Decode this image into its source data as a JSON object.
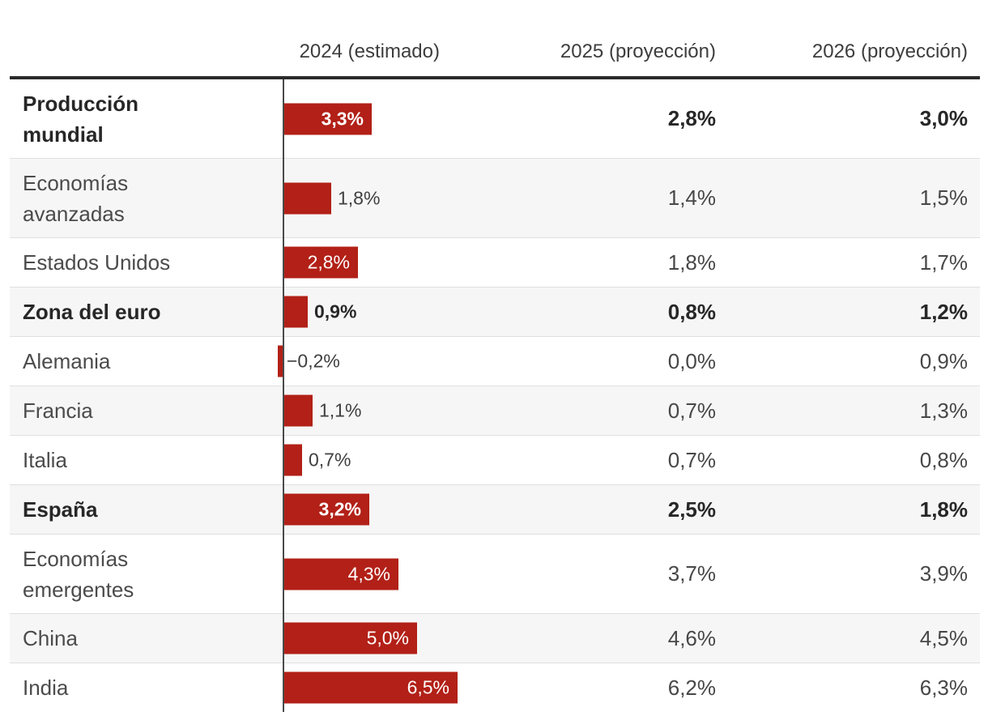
{
  "header": {
    "col_2024": "2024 (estimado)",
    "col_2025": "2025 (proyección)",
    "col_2026": "2026 (proyección)"
  },
  "rows": [
    {
      "label_lines": [
        "Producción",
        "mundial"
      ],
      "bold": true,
      "value_2024": 3.3,
      "bar_label": "3,3%",
      "label_inside": true,
      "value_2025": "2,8%",
      "value_2026": "3,0%"
    },
    {
      "label_lines": [
        "Economías",
        "avanzadas"
      ],
      "bold": false,
      "value_2024": 1.8,
      "bar_label": "1,8%",
      "label_inside": false,
      "value_2025": "1,4%",
      "value_2026": "1,5%"
    },
    {
      "label_lines": [
        "Estados Unidos"
      ],
      "bold": false,
      "value_2024": 2.8,
      "bar_label": "2,8%",
      "label_inside": true,
      "value_2025": "1,8%",
      "value_2026": "1,7%"
    },
    {
      "label_lines": [
        "Zona del euro"
      ],
      "bold": true,
      "value_2024": 0.9,
      "bar_label": "0,9%",
      "label_inside": false,
      "value_2025": "0,8%",
      "value_2026": "1,2%"
    },
    {
      "label_lines": [
        "Alemania"
      ],
      "bold": false,
      "value_2024": -0.2,
      "bar_label": "−0,2%",
      "label_inside": false,
      "value_2025": "0,0%",
      "value_2026": "0,9%"
    },
    {
      "label_lines": [
        "Francia"
      ],
      "bold": false,
      "value_2024": 1.1,
      "bar_label": "1,1%",
      "label_inside": false,
      "value_2025": "0,7%",
      "value_2026": "1,3%"
    },
    {
      "label_lines": [
        "Italia"
      ],
      "bold": false,
      "value_2024": 0.7,
      "bar_label": "0,7%",
      "label_inside": false,
      "value_2025": "0,7%",
      "value_2026": "0,8%"
    },
    {
      "label_lines": [
        "España"
      ],
      "bold": true,
      "value_2024": 3.2,
      "bar_label": "3,2%",
      "label_inside": true,
      "value_2025": "2,5%",
      "value_2026": "1,8%"
    },
    {
      "label_lines": [
        "Economías",
        "emergentes"
      ],
      "bold": false,
      "value_2024": 4.3,
      "bar_label": "4,3%",
      "label_inside": true,
      "value_2025": "3,7%",
      "value_2026": "3,9%"
    },
    {
      "label_lines": [
        "China"
      ],
      "bold": false,
      "value_2024": 5.0,
      "bar_label": "5,0%",
      "label_inside": true,
      "value_2025": "4,6%",
      "value_2026": "4,5%"
    },
    {
      "label_lines": [
        "India"
      ],
      "bold": false,
      "value_2024": 6.5,
      "bar_label": "6,5%",
      "label_inside": true,
      "value_2025": "6,2%",
      "value_2026": "6,3%"
    }
  ],
  "colors": {
    "bar_red": "#b22017",
    "bold_text": "#272727",
    "regular_text": "#4b4b4b",
    "header_text": "#3d3d3d",
    "shaded_row": "#f6f6f6",
    "separator": "#e0e0e0",
    "top_rule": "#2b2b2b",
    "axis_line": "#4a4a4a",
    "bar_inner_label": "#ffffff"
  },
  "chart_data": {
    "type": "bar",
    "title": "",
    "orientation": "horizontal",
    "unit": "%",
    "categories": [
      "Producción mundial",
      "Economías avanzadas",
      "Estados Unidos",
      "Zona del euro",
      "Alemania",
      "Francia",
      "Italia",
      "España",
      "Economías emergentes",
      "China",
      "India"
    ],
    "series": [
      {
        "name": "2024 (estimado)",
        "values": [
          3.3,
          1.8,
          2.8,
          0.9,
          -0.2,
          1.1,
          0.7,
          3.2,
          4.3,
          5.0,
          6.5
        ]
      },
      {
        "name": "2025 (proyección)",
        "values": [
          2.8,
          1.4,
          1.8,
          0.8,
          0.0,
          0.7,
          0.7,
          2.5,
          3.7,
          4.6,
          6.2
        ]
      },
      {
        "name": "2026 (proyección)",
        "values": [
          3.0,
          1.5,
          1.7,
          1.2,
          0.9,
          1.3,
          0.8,
          1.8,
          3.9,
          4.5,
          6.3
        ]
      }
    ],
    "bars_drawn_for_series": "2024 (estimado)",
    "xlim": [
      -0.2,
      6.5
    ],
    "grid": false,
    "legend_position": "column headers",
    "notes": "Only the 2024 column is rendered as bars with a vertical zero axis; 2025 and 2026 are numeric columns. Bold rows: Producción mundial, Zona del euro, España."
  }
}
